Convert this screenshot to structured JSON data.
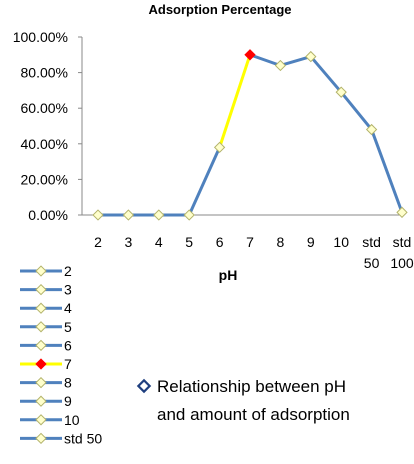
{
  "chart_data": {
    "type": "line",
    "title": "Adsorption Percentage",
    "xlabel": "pH",
    "ylabel": "",
    "categories": [
      "2",
      "3",
      "4",
      "5",
      "6",
      "7",
      "8",
      "9",
      "10",
      "std 50",
      "std 100"
    ],
    "y_ticks": [
      "0.00%",
      "20.00%",
      "40.00%",
      "60.00%",
      "80.00%",
      "100.00%"
    ],
    "ylim": [
      0,
      100
    ],
    "series": [
      {
        "name": "Relationship between pH and amount of adsorption",
        "values": [
          0,
          0,
          0,
          0,
          38,
          90,
          84,
          89,
          69,
          48,
          1.5
        ]
      }
    ],
    "highlight": {
      "category": "7",
      "segment_color": "#ffff00",
      "marker_color": "#ff0000"
    },
    "line_color": "#4f81bd",
    "marker_fill": "#ffffcc",
    "marker_stroke": "#b3b36b",
    "legend_entries": [
      "2",
      "3",
      "4",
      "5",
      "6",
      "7",
      "8",
      "9",
      "10",
      "std 50"
    ],
    "legend_position": "bottom-left",
    "series_legend_lines": [
      "Relationship between pH",
      "and  amount of adsorption"
    ],
    "series_legend_marker_color": "#1f3f7f",
    "grid": false
  }
}
